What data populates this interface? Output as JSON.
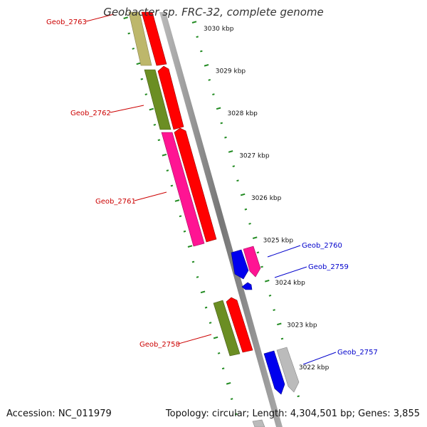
{
  "title": "Geobacter sp. FRC-32, complete genome",
  "footer": {
    "accession": "Accession: NC_011979",
    "stats": "Topology: circular; Length: 4,304,501 bp; Genes: 3,855"
  },
  "ticks": [
    "3030 kbp",
    "3029 kbp",
    "3028 kbp",
    "3027 kbp",
    "3026 kbp",
    "3025 kbp",
    "3024 kbp",
    "3023 kbp",
    "3022 kbp"
  ],
  "genes": {
    "reverse_strand": [
      {
        "label": "Geob_2763",
        "color": "#bdb76b"
      },
      {
        "label": "Geob_2762",
        "color": "#6b8e23"
      },
      {
        "label": "Geob_2761",
        "color": "#ff1493"
      },
      {
        "label": "Geob_2758",
        "color": "#6b8e23"
      }
    ],
    "forward_strand": [
      {
        "label": "Geob_2760",
        "color": "#0000ee"
      },
      {
        "label": "Geob_2759",
        "color": "#0000ee"
      },
      {
        "label": "Geob_2757",
        "color": "#0000ee"
      }
    ]
  },
  "colors": {
    "reverse_label": "#cc0000",
    "forward_label": "#0000cc",
    "cds": "#ff0000",
    "cds_outline": "#990000",
    "backbone": "#888888",
    "tick": "#228b22",
    "grey_feature": "#bbbbbb"
  }
}
